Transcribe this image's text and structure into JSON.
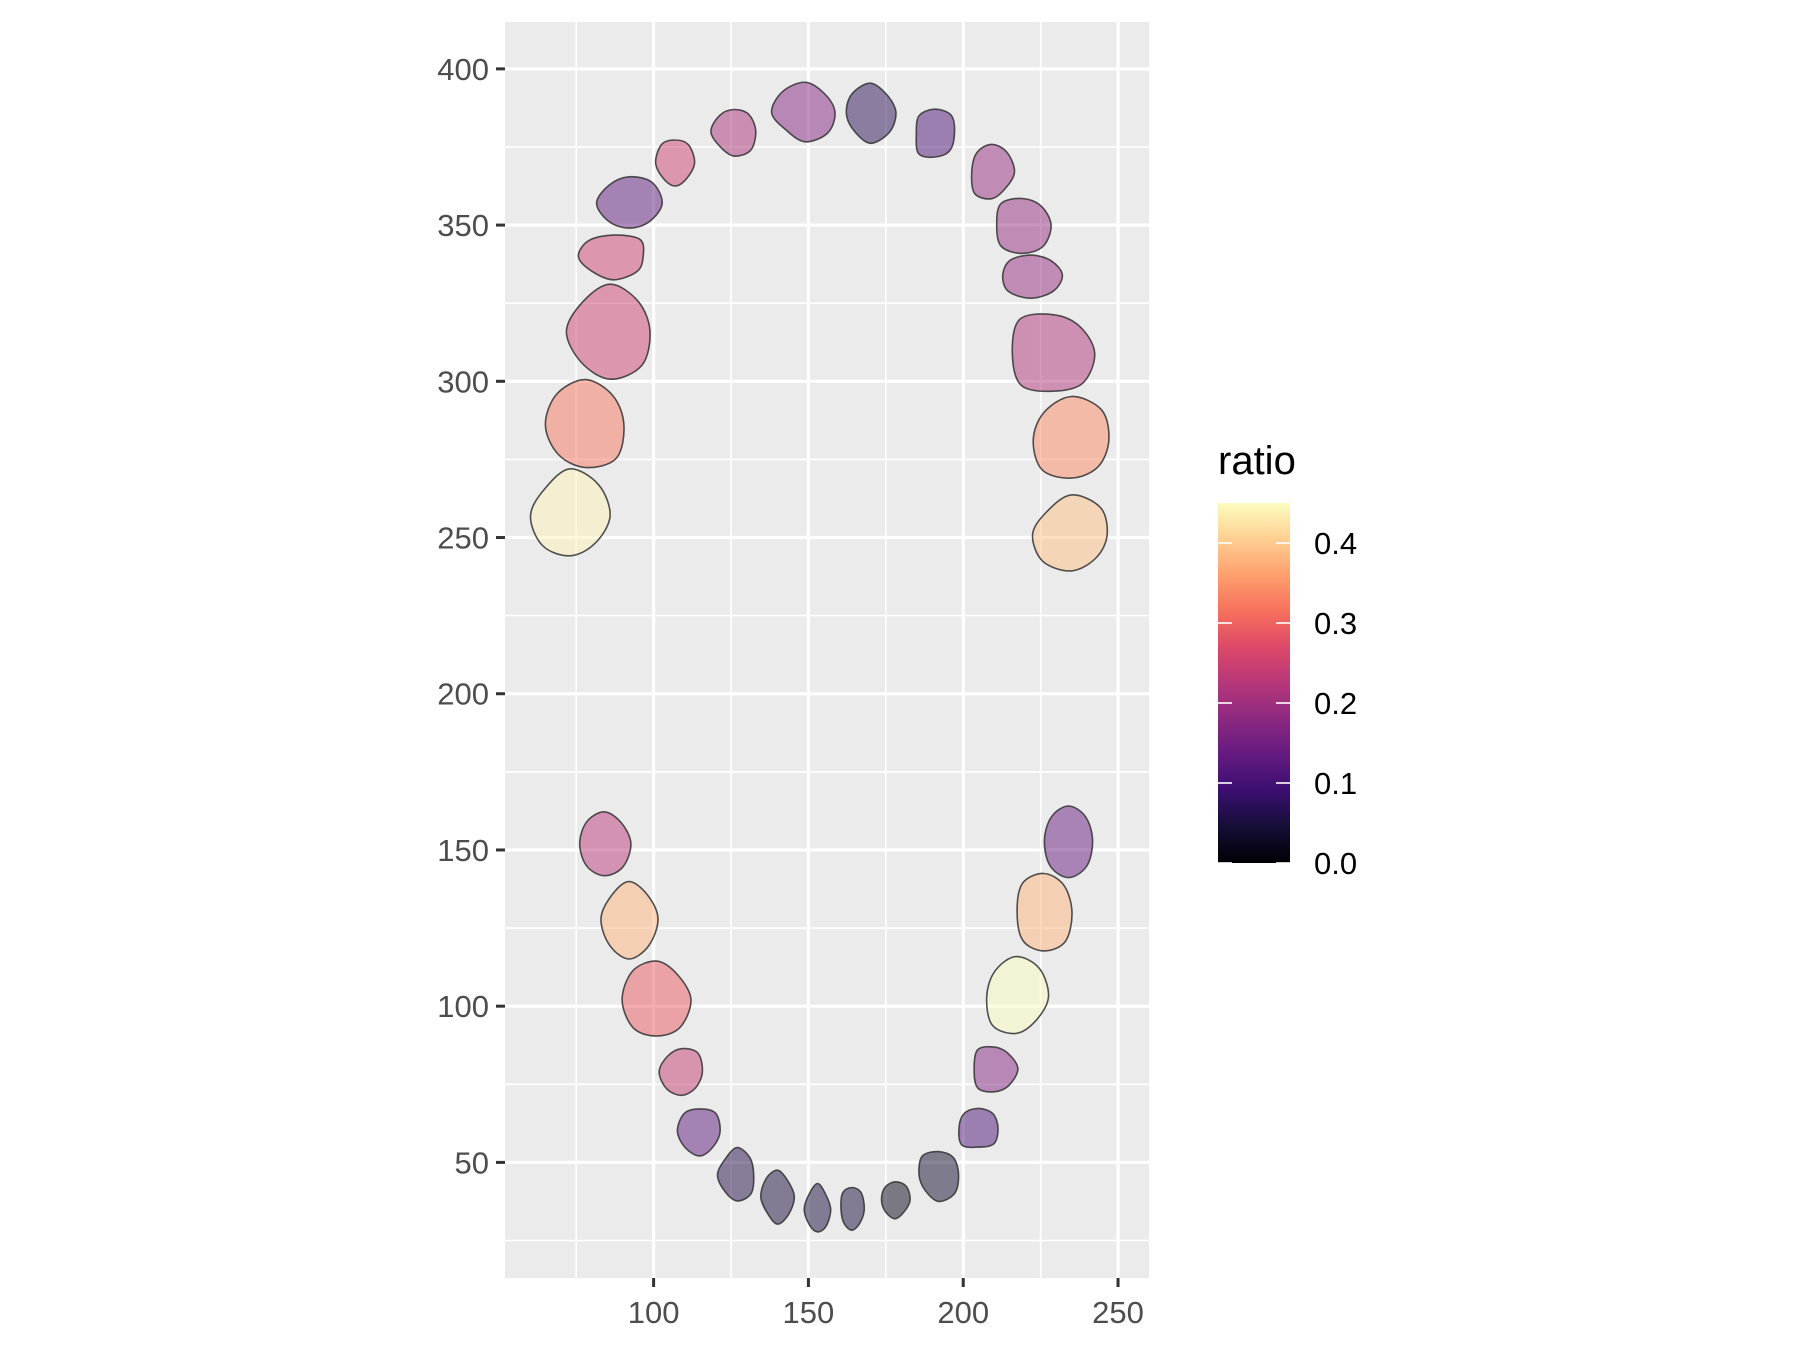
{
  "chart_data": {
    "type": "choropleth",
    "title": "",
    "xlabel": "",
    "ylabel": "",
    "xlim": [
      52,
      260
    ],
    "ylim": [
      13,
      415
    ],
    "x_ticks": [
      100,
      150,
      200,
      250
    ],
    "y_ticks": [
      50,
      100,
      150,
      200,
      250,
      300,
      350,
      400
    ],
    "grid": true,
    "panel_background": "#ebebeb",
    "legend": {
      "title": "ratio",
      "position": "right",
      "palette": "magma",
      "range": [
        0,
        0.45
      ],
      "ticks": [
        0.0,
        0.1,
        0.2,
        0.3,
        0.4
      ],
      "tick_labels": [
        "0.0",
        "0.1",
        "0.2",
        "0.3",
        "0.4"
      ]
    },
    "regions": [
      {
        "id": "upper-right-8",
        "cx": 73,
        "cy": 257,
        "rx": 13,
        "ry": 14,
        "ratio": 0.44
      },
      {
        "id": "upper-right-7",
        "cx": 78,
        "cy": 286,
        "rx": 13,
        "ry": 14,
        "ratio": 0.32
      },
      {
        "id": "upper-right-6",
        "cx": 86,
        "cy": 316,
        "rx": 14,
        "ry": 15,
        "ratio": 0.25
      },
      {
        "id": "upper-right-5",
        "cx": 87,
        "cy": 340,
        "rx": 11,
        "ry": 7,
        "ratio": 0.25
      },
      {
        "id": "upper-right-4",
        "cx": 92,
        "cy": 357,
        "rx": 10,
        "ry": 9,
        "ratio": 0.13
      },
      {
        "id": "upper-right-3",
        "cx": 107,
        "cy": 370,
        "rx": 6,
        "ry": 8,
        "ratio": 0.25
      },
      {
        "id": "upper-right-2",
        "cx": 126,
        "cy": 380,
        "rx": 7,
        "ry": 8,
        "ratio": 0.21
      },
      {
        "id": "upper-right-1",
        "cx": 149,
        "cy": 386,
        "rx": 10,
        "ry": 9,
        "ratio": 0.17
      },
      {
        "id": "upper-left-1",
        "cx": 170,
        "cy": 386,
        "rx": 9,
        "ry": 9,
        "ratio": 0.07
      },
      {
        "id": "upper-left-2",
        "cx": 191,
        "cy": 379,
        "rx": 7,
        "ry": 8,
        "ratio": 0.11
      },
      {
        "id": "upper-left-3",
        "cx": 209,
        "cy": 367,
        "rx": 7,
        "ry": 9,
        "ratio": 0.19
      },
      {
        "id": "upper-left-4",
        "cx": 219,
        "cy": 350,
        "rx": 9,
        "ry": 9,
        "ratio": 0.19
      },
      {
        "id": "upper-left-5",
        "cx": 222,
        "cy": 334,
        "rx": 10,
        "ry": 7,
        "ratio": 0.19
      },
      {
        "id": "upper-left-6",
        "cx": 229,
        "cy": 309,
        "rx": 14,
        "ry": 14,
        "ratio": 0.22
      },
      {
        "id": "upper-left-7",
        "cx": 235,
        "cy": 281,
        "rx": 13,
        "ry": 13,
        "ratio": 0.34
      },
      {
        "id": "upper-left-8",
        "cx": 235,
        "cy": 251,
        "rx": 13,
        "ry": 12,
        "ratio": 0.39
      },
      {
        "id": "lower-right-8",
        "cx": 84,
        "cy": 152,
        "rx": 8,
        "ry": 10,
        "ratio": 0.23
      },
      {
        "id": "lower-right-7",
        "cx": 92,
        "cy": 128,
        "rx": 9,
        "ry": 12,
        "ratio": 0.38
      },
      {
        "id": "lower-right-6",
        "cx": 101,
        "cy": 102,
        "rx": 11,
        "ry": 13,
        "ratio": 0.29
      },
      {
        "id": "lower-right-5",
        "cx": 109,
        "cy": 79,
        "rx": 7,
        "ry": 8,
        "ratio": 0.24
      },
      {
        "id": "lower-right-4",
        "cx": 115,
        "cy": 60,
        "rx": 7,
        "ry": 8,
        "ratio": 0.13
      },
      {
        "id": "lower-right-3",
        "cx": 127,
        "cy": 46,
        "rx": 6,
        "ry": 8,
        "ratio": 0.06
      },
      {
        "id": "lower-right-2",
        "cx": 140,
        "cy": 39,
        "rx": 5,
        "ry": 8,
        "ratio": 0.05
      },
      {
        "id": "lower-right-1",
        "cx": 153,
        "cy": 35,
        "rx": 4,
        "ry": 8,
        "ratio": 0.05
      },
      {
        "id": "lower-left-1",
        "cx": 164,
        "cy": 35,
        "rx": 4,
        "ry": 7,
        "ratio": 0.05
      },
      {
        "id": "lower-left-2",
        "cx": 178,
        "cy": 38,
        "rx": 5,
        "ry": 6,
        "ratio": 0.02
      },
      {
        "id": "lower-left-3",
        "cx": 192,
        "cy": 46,
        "rx": 7,
        "ry": 8,
        "ratio": 0.04
      },
      {
        "id": "lower-left-4",
        "cx": 205,
        "cy": 61,
        "rx": 7,
        "ry": 7,
        "ratio": 0.11
      },
      {
        "id": "lower-left-5",
        "cx": 210,
        "cy": 80,
        "rx": 7,
        "ry": 8,
        "ratio": 0.17
      },
      {
        "id": "lower-left-6",
        "cx": 217,
        "cy": 103,
        "rx": 10,
        "ry": 12,
        "ratio": 0.45
      },
      {
        "id": "lower-left-7",
        "cx": 226,
        "cy": 130,
        "rx": 9,
        "ry": 12,
        "ratio": 0.38
      },
      {
        "id": "lower-left-8",
        "cx": 234,
        "cy": 153,
        "rx": 8,
        "ry": 11,
        "ratio": 0.14
      }
    ]
  }
}
